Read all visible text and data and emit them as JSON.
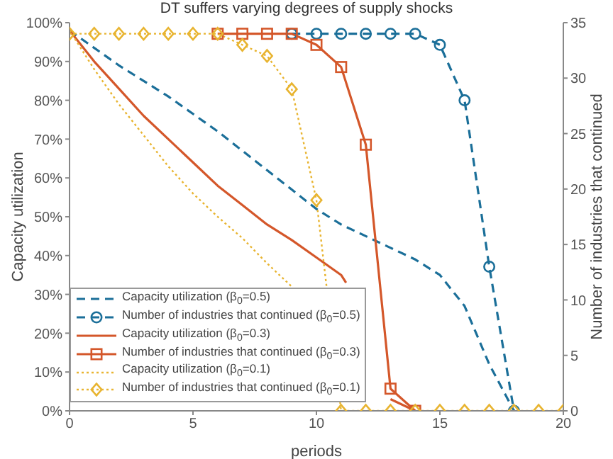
{
  "chart_data": {
    "type": "line",
    "title": "DT suffers varying degrees of supply shocks",
    "xlabel": "periods",
    "ylabel": "Capacity utilization",
    "y2label": "Number of industries that continued",
    "xlim": [
      0,
      20
    ],
    "xticks": [
      0,
      5,
      10,
      15,
      20
    ],
    "ylim": [
      0,
      100
    ],
    "yticks": [
      {
        "value": 0,
        "label": "0%"
      },
      {
        "value": 10,
        "label": "10%"
      },
      {
        "value": 20,
        "label": "20%"
      },
      {
        "value": 30,
        "label": "30%"
      },
      {
        "value": 40,
        "label": "40%"
      },
      {
        "value": 50,
        "label": "50%"
      },
      {
        "value": 60,
        "label": "60%"
      },
      {
        "value": 70,
        "label": "70%"
      },
      {
        "value": 80,
        "label": "80%"
      },
      {
        "value": 90,
        "label": "90%"
      },
      {
        "value": 100,
        "label": "100%"
      }
    ],
    "y2lim": [
      0,
      35
    ],
    "y2ticks": [
      0,
      5,
      10,
      15,
      20,
      25,
      30,
      35
    ],
    "legend": "bottom left",
    "series": [
      {
        "name": "Capacity utilization (β$_{0}$=0.5)",
        "color": "#1b6f99",
        "line_style": "dashed",
        "marker": "none",
        "x": [
          0,
          2,
          4,
          6,
          8,
          10,
          11,
          12,
          13,
          14,
          15,
          16,
          17,
          18
        ],
        "values": [
          98,
          89,
          81,
          72,
          62,
          52,
          48,
          45,
          42,
          39,
          35,
          27,
          12,
          0
        ]
      },
      {
        "name": "Number of industries that continued (β$_{0}$=0.5)",
        "color": "#1b6f99",
        "line_style": "dashed",
        "marker": "circle",
        "axis": "y2",
        "x": [
          9,
          10,
          11,
          12,
          13,
          14,
          15,
          16,
          17,
          18
        ],
        "values": [
          34,
          34,
          34,
          34,
          34,
          34,
          33,
          28,
          13,
          0
        ]
      },
      {
        "name": "Capacity utilization (β$_{0}$=0.3)",
        "color": "#d4572a",
        "line_style": "solid",
        "marker": "none",
        "x": [
          0,
          1,
          2,
          3,
          4,
          5,
          6,
          7,
          8,
          9,
          10,
          11,
          11.2,
          12,
          13,
          14
        ],
        "values": [
          98,
          90,
          83,
          76,
          70,
          64,
          58,
          53,
          48,
          44,
          39.5,
          35,
          33,
          null,
          3,
          0
        ]
      },
      {
        "name": "Number of industries that continued (β$_{0}$=0.3)",
        "color": "#d4572a",
        "line_style": "solid",
        "marker": "square",
        "axis": "y2",
        "x": [
          6,
          7,
          8,
          9,
          10,
          11,
          12,
          13,
          14
        ],
        "values": [
          34,
          34,
          34,
          34,
          33,
          31,
          24,
          2,
          0
        ]
      },
      {
        "name": "Capacity utilization (β$_{0}$=0.1)",
        "color": "#e8b430",
        "line_style": "dotted",
        "marker": "none",
        "x": [
          0,
          1,
          2,
          3,
          4,
          5,
          6,
          7,
          8,
          9
        ],
        "values": [
          98,
          88,
          79,
          71,
          63,
          56,
          50,
          44.5,
          38,
          32
        ]
      },
      {
        "name": "Number of industries that continued (β$_{0}$=0.1)",
        "color": "#e8b430",
        "line_style": "dotted",
        "marker": "diamond",
        "axis": "y2",
        "x": [
          0,
          1,
          2,
          3,
          4,
          5,
          6,
          7,
          8,
          9,
          10,
          11,
          12,
          13,
          14,
          15,
          16,
          17,
          18,
          19,
          20
        ],
        "values": [
          34,
          34,
          34,
          34,
          34,
          34,
          34,
          33,
          32,
          29,
          19,
          0,
          0,
          0,
          0,
          0,
          0,
          0,
          0,
          0,
          0
        ]
      }
    ]
  }
}
